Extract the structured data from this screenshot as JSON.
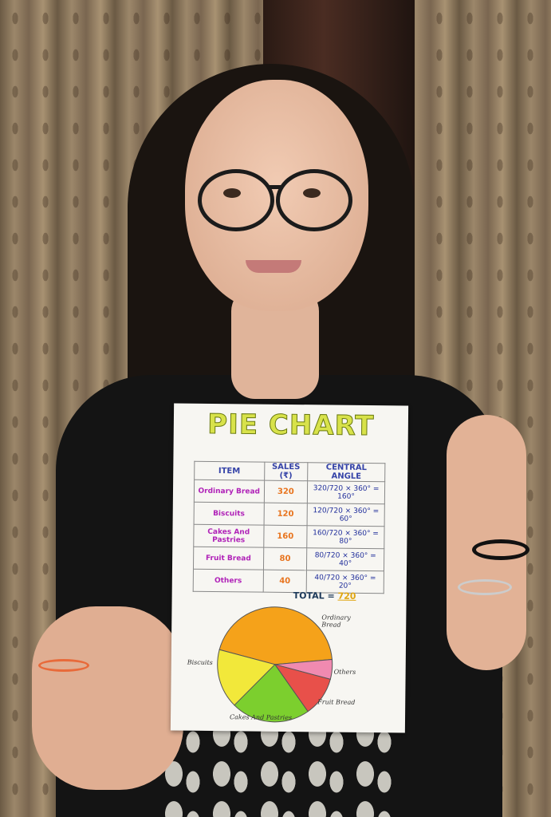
{
  "poster": {
    "title": "PIE CHART",
    "headers": [
      "ITEM",
      "SALES (₹)",
      "CENTRAL ANGLE"
    ],
    "rows": [
      {
        "item": "Ordinary Bread",
        "sales": "320",
        "angle": "320/720 × 360° = 160°"
      },
      {
        "item": "Biscuits",
        "sales": "120",
        "angle": "120/720 × 360° = 60°"
      },
      {
        "item": "Cakes And Pastries",
        "sales": "160",
        "angle": "160/720 × 360° = 80°"
      },
      {
        "item": "Fruit Bread",
        "sales": "80",
        "angle": "80/720 × 360° = 40°"
      },
      {
        "item": "Others",
        "sales": "40",
        "angle": "40/720 × 360° = 20°"
      }
    ],
    "total_label": "TOTAL = ",
    "total_value": "720",
    "pie_labels": {
      "ordinary": "Ordinary Bread",
      "biscuits": "Biscuits",
      "cakes": "Cakes And Pastries",
      "fruit": "Fruit Bread",
      "others": "Others"
    }
  },
  "chart_data": {
    "type": "pie",
    "categories": [
      "Ordinary Bread",
      "Biscuits",
      "Cakes And Pastries",
      "Fruit Bread",
      "Others"
    ],
    "values": [
      320,
      120,
      160,
      80,
      40
    ],
    "colors": [
      "#f5a21a",
      "#f2e83a",
      "#7ccf2e",
      "#e8504a",
      "#f08ab0"
    ]
  }
}
